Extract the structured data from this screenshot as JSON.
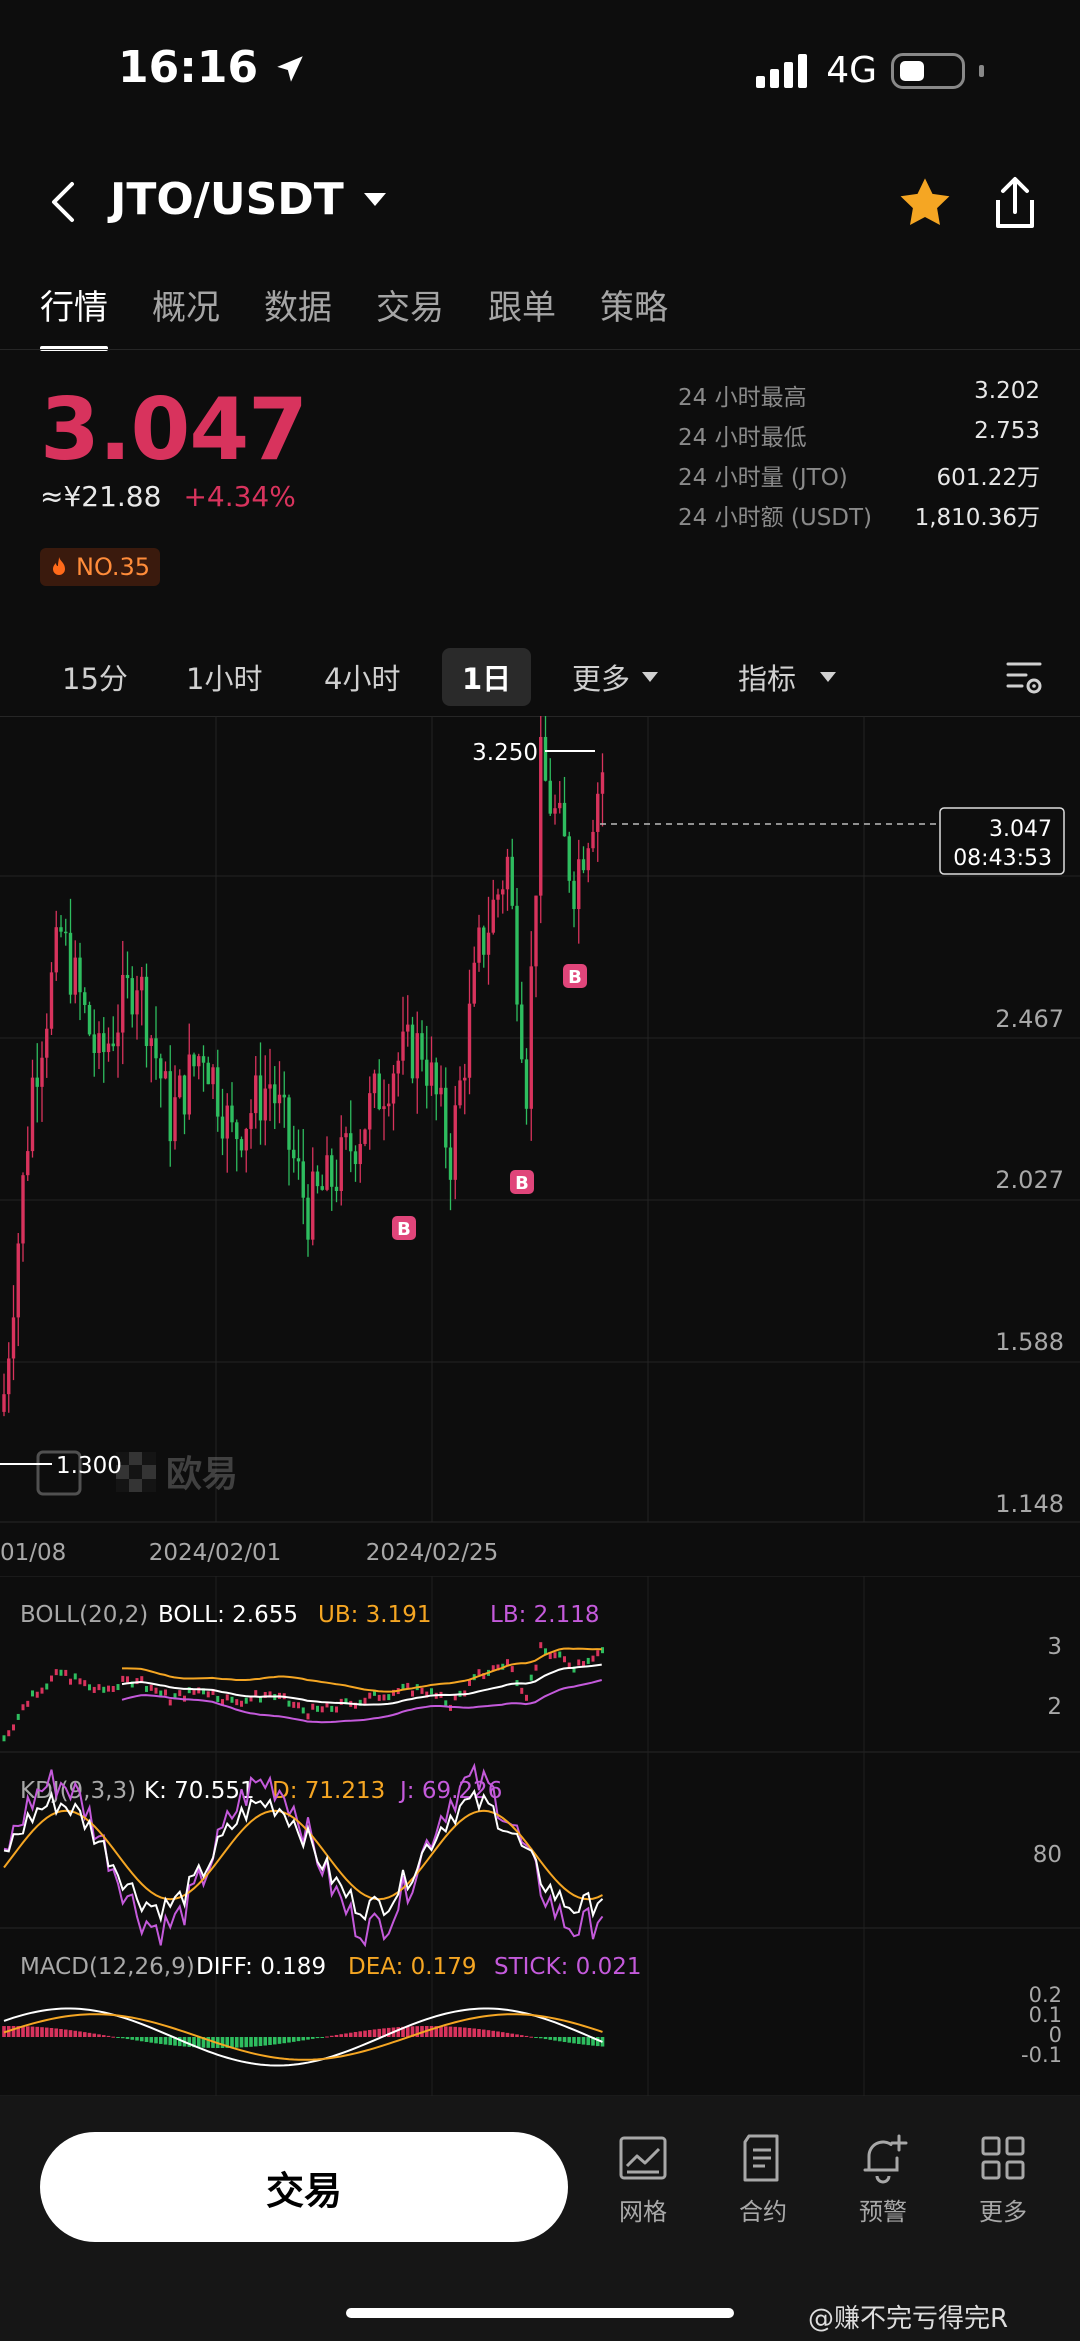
{
  "status_bar": {
    "time": "16:16",
    "network": "4G",
    "icons": [
      "location-arrow-icon",
      "signal-icon",
      "battery-icon"
    ]
  },
  "header": {
    "pair": "JTO/USDT",
    "icons": [
      "back-arrow-icon",
      "caret-down-icon",
      "star-icon",
      "share-icon"
    ],
    "star_color": "#f5a623"
  },
  "tabs": [
    {
      "label": "行情",
      "active": true
    },
    {
      "label": "概况"
    },
    {
      "label": "数据"
    },
    {
      "label": "交易"
    },
    {
      "label": "跟单"
    },
    {
      "label": "策略"
    }
  ],
  "price": {
    "last": "3.047",
    "cny": "≈¥21.88",
    "change": "+4.34%",
    "rank": "NO.35",
    "color_up": "#d8335d",
    "color_down": "#2ebd5f"
  },
  "stats": [
    {
      "label": "24 小时最高",
      "value": "3.202"
    },
    {
      "label": "24 小时最低",
      "value": "2.753"
    },
    {
      "label": "24 小时量 (JTO)",
      "value": "601.22万"
    },
    {
      "label": "24 小时额 (USDT)",
      "value": "1,810.36万"
    }
  ],
  "intervals": {
    "items": [
      "15分",
      "1小时",
      "4小时",
      "1日"
    ],
    "active": "1日",
    "more": "更多",
    "indicator": "指标"
  },
  "chart_data": {
    "type": "candlestick",
    "price_axis": [
      "2.467",
      "2.027",
      "1.588",
      "1.148"
    ],
    "date_axis": [
      "01/08",
      "2024/02/01",
      "2024/02/25"
    ],
    "high_marker": "3.250",
    "low_marker": "1.300",
    "current_price": "3.047",
    "countdown": "08:43:53",
    "trade_markers": [
      "B",
      "B",
      "B",
      "B"
    ],
    "watermark": "欧易"
  },
  "indicators": {
    "boll": {
      "name": "BOLL(20,2)",
      "mid": "BOLL: 2.655",
      "ub": "UB: 3.191",
      "lb": "LB: 2.118",
      "axis": [
        "3",
        "2"
      ]
    },
    "kdj": {
      "name": "KDJ(9,3,3)",
      "k": "K: 70.551",
      "d": "D: 71.213",
      "j": "J: 69.226",
      "axis": [
        "80"
      ]
    },
    "macd": {
      "name": "MACD(12,26,9)",
      "diff": "DIFF: 0.189",
      "dea": "DEA: 0.179",
      "stick": "STICK: 0.021",
      "axis": [
        "0.2",
        "0.1",
        "0",
        "-0.1"
      ]
    }
  },
  "bottom": {
    "trade_button": "交易",
    "tools": [
      {
        "label": "网格",
        "icon": "grid-chart-icon"
      },
      {
        "label": "合约",
        "icon": "contract-icon"
      },
      {
        "label": "预警",
        "icon": "bell-plus-icon"
      },
      {
        "label": "更多",
        "icon": "apps-icon"
      }
    ]
  },
  "watermark_text": "@赚不完亏得完R"
}
